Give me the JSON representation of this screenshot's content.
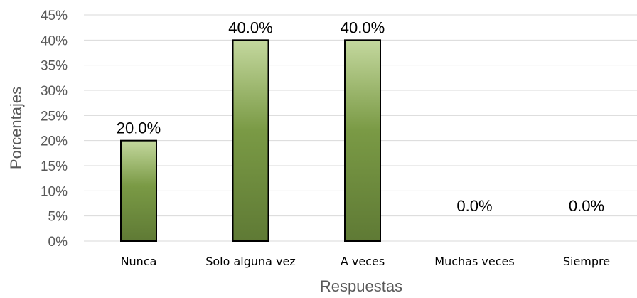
{
  "chart_data": {
    "type": "bar",
    "categories": [
      "Nunca",
      "Solo alguna vez",
      "A veces",
      "Muchas veces",
      "Siempre"
    ],
    "values": [
      20.0,
      40.0,
      40.0,
      0.0,
      0.0
    ],
    "data_labels": [
      "20.0%",
      "40.0%",
      "40.0%",
      "0.0%",
      "0.0%"
    ],
    "xlabel": "Respuestas",
    "ylabel": "Porcentajes",
    "ylim": [
      0,
      45
    ],
    "yticks": [
      0,
      5,
      10,
      15,
      20,
      25,
      30,
      35,
      40,
      45
    ],
    "ytick_labels": [
      "0%",
      "5%",
      "10%",
      "15%",
      "20%",
      "25%",
      "30%",
      "35%",
      "40%",
      "45%"
    ],
    "grid": true,
    "legend": "none",
    "colors": {
      "bar_top": "#c4d89e",
      "bar_mid": "#7a9a45",
      "bar_bottom": "#5f7a35",
      "bar_border": "#000000",
      "grid": "#d9d9d9"
    }
  }
}
